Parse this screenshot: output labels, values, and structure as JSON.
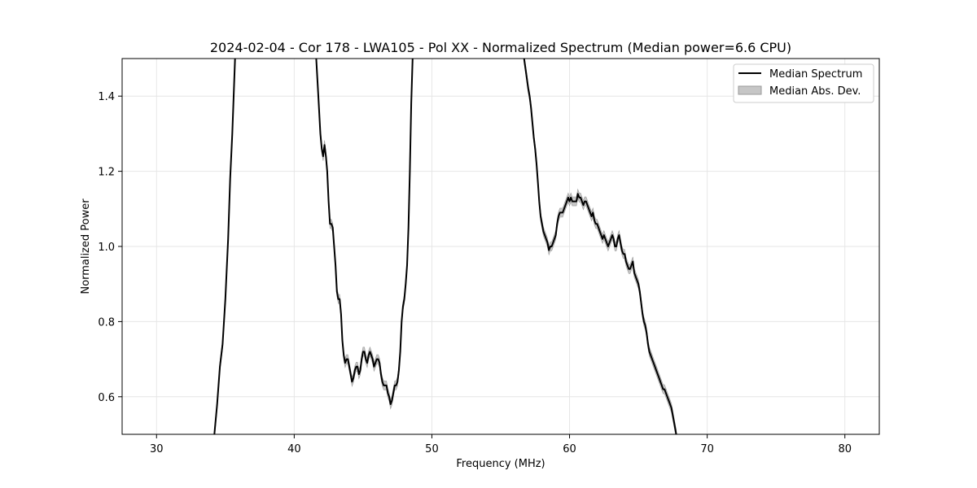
{
  "chart_data": {
    "type": "line",
    "title": "2024-02-04 - Cor 178 - LWA105 - Pol XX - Normalized Spectrum (Median power=6.6 CPU)",
    "xlabel": "Frequency (MHz)",
    "ylabel": "Normalized Power",
    "xlim": [
      27.5,
      82.5
    ],
    "ylim": [
      0.5,
      1.5
    ],
    "xticks": [
      30,
      40,
      50,
      60,
      70,
      80
    ],
    "yticks": [
      0.6,
      0.8,
      1.0,
      1.2,
      1.4
    ],
    "xtick_labels": [
      "30",
      "40",
      "50",
      "60",
      "70",
      "80"
    ],
    "ytick_labels": [
      "0.6",
      "0.8",
      "1.0",
      "1.2",
      "1.4"
    ],
    "grid": true,
    "legend_position": "top-right",
    "colors": {
      "line": "#000000",
      "band": "#c6c6c6",
      "band_edge": "#9a9a9a",
      "grid": "#e6e6e6"
    },
    "series": [
      {
        "name": "Median Spectrum",
        "kind": "line",
        "segments": [
          [
            [
              34.2,
              0.5
            ],
            [
              34.4,
              0.58
            ],
            [
              34.6,
              0.68
            ],
            [
              34.8,
              0.74
            ],
            [
              35.0,
              0.86
            ],
            [
              35.2,
              1.02
            ],
            [
              35.35,
              1.18
            ],
            [
              35.5,
              1.3
            ],
            [
              35.7,
              1.5
            ]
          ],
          [
            [
              41.6,
              1.5
            ],
            [
              41.75,
              1.4
            ],
            [
              41.9,
              1.3
            ],
            [
              42.0,
              1.26
            ],
            [
              42.1,
              1.24
            ],
            [
              42.2,
              1.27
            ],
            [
              42.3,
              1.24
            ],
            [
              42.4,
              1.2
            ],
            [
              42.5,
              1.12
            ],
            [
              42.6,
              1.06
            ],
            [
              42.7,
              1.06
            ],
            [
              42.8,
              1.05
            ],
            [
              42.9,
              1.0
            ],
            [
              43.0,
              0.95
            ],
            [
              43.1,
              0.88
            ],
            [
              43.2,
              0.86
            ],
            [
              43.3,
              0.86
            ],
            [
              43.4,
              0.82
            ],
            [
              43.5,
              0.75
            ],
            [
              43.6,
              0.71
            ],
            [
              43.7,
              0.69
            ],
            [
              43.8,
              0.7
            ],
            [
              43.9,
              0.7
            ],
            [
              44.0,
              0.68
            ],
            [
              44.1,
              0.66
            ],
            [
              44.2,
              0.64
            ],
            [
              44.3,
              0.65
            ],
            [
              44.4,
              0.67
            ],
            [
              44.5,
              0.68
            ],
            [
              44.6,
              0.68
            ],
            [
              44.7,
              0.66
            ],
            [
              44.8,
              0.67
            ],
            [
              44.9,
              0.7
            ],
            [
              45.0,
              0.72
            ],
            [
              45.1,
              0.72
            ],
            [
              45.2,
              0.7
            ],
            [
              45.3,
              0.69
            ],
            [
              45.4,
              0.71
            ],
            [
              45.5,
              0.72
            ],
            [
              45.6,
              0.71
            ],
            [
              45.7,
              0.7
            ],
            [
              45.8,
              0.68
            ],
            [
              45.9,
              0.69
            ],
            [
              46.0,
              0.7
            ],
            [
              46.1,
              0.7
            ],
            [
              46.2,
              0.69
            ],
            [
              46.3,
              0.66
            ],
            [
              46.4,
              0.64
            ],
            [
              46.5,
              0.63
            ],
            [
              46.6,
              0.63
            ],
            [
              46.7,
              0.63
            ],
            [
              46.8,
              0.61
            ],
            [
              46.9,
              0.6
            ],
            [
              47.0,
              0.58
            ],
            [
              47.1,
              0.59
            ],
            [
              47.2,
              0.61
            ],
            [
              47.3,
              0.63
            ],
            [
              47.4,
              0.63
            ],
            [
              47.5,
              0.64
            ],
            [
              47.6,
              0.67
            ],
            [
              47.7,
              0.72
            ],
            [
              47.8,
              0.8
            ],
            [
              47.9,
              0.84
            ],
            [
              48.0,
              0.86
            ],
            [
              48.1,
              0.9
            ],
            [
              48.2,
              0.95
            ],
            [
              48.3,
              1.05
            ],
            [
              48.4,
              1.2
            ],
            [
              48.5,
              1.38
            ],
            [
              48.6,
              1.5
            ]
          ],
          [
            [
              56.7,
              1.5
            ],
            [
              56.85,
              1.46
            ],
            [
              57.0,
              1.42
            ],
            [
              57.1,
              1.4
            ],
            [
              57.2,
              1.37
            ],
            [
              57.3,
              1.33
            ],
            [
              57.4,
              1.29
            ],
            [
              57.5,
              1.26
            ],
            [
              57.6,
              1.22
            ],
            [
              57.7,
              1.17
            ],
            [
              57.8,
              1.12
            ],
            [
              57.9,
              1.08
            ],
            [
              58.0,
              1.06
            ],
            [
              58.1,
              1.04
            ],
            [
              58.2,
              1.03
            ],
            [
              58.3,
              1.02
            ],
            [
              58.4,
              1.01
            ],
            [
              58.5,
              0.99
            ],
            [
              58.6,
              1.0
            ],
            [
              58.7,
              1.0
            ],
            [
              58.8,
              1.01
            ],
            [
              58.9,
              1.02
            ],
            [
              59.0,
              1.03
            ],
            [
              59.1,
              1.06
            ],
            [
              59.2,
              1.08
            ],
            [
              59.3,
              1.09
            ],
            [
              59.4,
              1.09
            ],
            [
              59.5,
              1.09
            ],
            [
              59.6,
              1.1
            ],
            [
              59.7,
              1.11
            ],
            [
              59.8,
              1.12
            ],
            [
              59.9,
              1.13
            ],
            [
              60.0,
              1.12
            ],
            [
              60.1,
              1.13
            ],
            [
              60.2,
              1.12
            ],
            [
              60.3,
              1.12
            ],
            [
              60.4,
              1.12
            ],
            [
              60.5,
              1.12
            ],
            [
              60.6,
              1.14
            ],
            [
              60.7,
              1.13
            ],
            [
              60.8,
              1.13
            ],
            [
              60.9,
              1.12
            ],
            [
              61.0,
              1.11
            ],
            [
              61.1,
              1.12
            ],
            [
              61.2,
              1.12
            ],
            [
              61.3,
              1.11
            ],
            [
              61.4,
              1.1
            ],
            [
              61.5,
              1.09
            ],
            [
              61.6,
              1.08
            ],
            [
              61.7,
              1.09
            ],
            [
              61.8,
              1.07
            ],
            [
              61.9,
              1.06
            ],
            [
              62.0,
              1.06
            ],
            [
              62.1,
              1.05
            ],
            [
              62.2,
              1.04
            ],
            [
              62.3,
              1.03
            ],
            [
              62.4,
              1.02
            ],
            [
              62.5,
              1.03
            ],
            [
              62.6,
              1.02
            ],
            [
              62.7,
              1.01
            ],
            [
              62.8,
              1.0
            ],
            [
              62.9,
              1.01
            ],
            [
              63.0,
              1.02
            ],
            [
              63.1,
              1.03
            ],
            [
              63.2,
              1.02
            ],
            [
              63.3,
              1.0
            ],
            [
              63.4,
              1.0
            ],
            [
              63.5,
              1.02
            ],
            [
              63.6,
              1.03
            ],
            [
              63.7,
              1.01
            ],
            [
              63.8,
              0.99
            ],
            [
              63.9,
              0.98
            ],
            [
              64.0,
              0.98
            ],
            [
              64.1,
              0.96
            ],
            [
              64.2,
              0.95
            ],
            [
              64.3,
              0.94
            ],
            [
              64.4,
              0.94
            ],
            [
              64.5,
              0.95
            ],
            [
              64.6,
              0.96
            ],
            [
              64.7,
              0.93
            ],
            [
              64.8,
              0.92
            ],
            [
              64.9,
              0.91
            ],
            [
              65.0,
              0.9
            ],
            [
              65.1,
              0.88
            ],
            [
              65.2,
              0.85
            ],
            [
              65.3,
              0.82
            ],
            [
              65.4,
              0.8
            ],
            [
              65.5,
              0.79
            ],
            [
              65.6,
              0.77
            ],
            [
              65.7,
              0.74
            ],
            [
              65.8,
              0.72
            ],
            [
              65.9,
              0.71
            ],
            [
              66.0,
              0.7
            ],
            [
              66.1,
              0.69
            ],
            [
              66.2,
              0.68
            ],
            [
              66.3,
              0.67
            ],
            [
              66.4,
              0.66
            ],
            [
              66.5,
              0.65
            ],
            [
              66.6,
              0.64
            ],
            [
              66.7,
              0.63
            ],
            [
              66.8,
              0.62
            ],
            [
              66.9,
              0.62
            ],
            [
              67.0,
              0.61
            ],
            [
              67.1,
              0.6
            ],
            [
              67.2,
              0.59
            ],
            [
              67.3,
              0.58
            ],
            [
              67.4,
              0.57
            ],
            [
              67.5,
              0.55
            ],
            [
              67.6,
              0.53
            ],
            [
              67.75,
              0.5
            ]
          ]
        ]
      },
      {
        "name": "Median Abs. Dev.",
        "kind": "band",
        "halfwidth": 0.012
      }
    ]
  }
}
